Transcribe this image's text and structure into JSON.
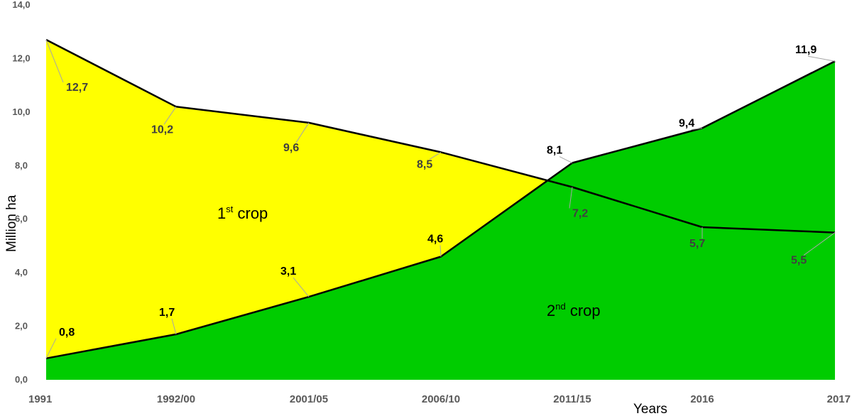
{
  "chart_data": {
    "type": "area",
    "categories": [
      "1991",
      "1992/00",
      "2001/05",
      "2006/10",
      "2011/15",
      "2016",
      "2017"
    ],
    "series": [
      {
        "name": "1st crop",
        "color": "#ffff00",
        "values": [
          12.7,
          10.2,
          9.6,
          8.5,
          7.2,
          5.7,
          5.5
        ],
        "value_labels": [
          "12,7",
          "10,2",
          "9,6",
          "8,5",
          "7,2",
          "5,7",
          "5,5"
        ]
      },
      {
        "name": "2nd crop",
        "color": "#00cc00",
        "values": [
          0.8,
          1.7,
          3.1,
          4.6,
          8.1,
          9.4,
          11.9
        ],
        "value_labels": [
          "0,8",
          "1,7",
          "3,1",
          "4,6",
          "8,1",
          "9,4",
          "11,9"
        ]
      }
    ],
    "ylim": [
      0,
      14
    ],
    "yticks": [
      0,
      2,
      4,
      6,
      8,
      10,
      12,
      14
    ],
    "ytick_labels": [
      "0,0",
      "2,0",
      "4,0",
      "6,0",
      "8,0",
      "10,0",
      "12,0",
      "14,0"
    ],
    "ylabel": "Million ha",
    "xlabel": "Years",
    "region_labels": [
      {
        "base": "1",
        "sup": "st",
        "text": " crop"
      },
      {
        "base": "2",
        "sup": "nd",
        "text": " crop"
      }
    ],
    "grid": false
  }
}
